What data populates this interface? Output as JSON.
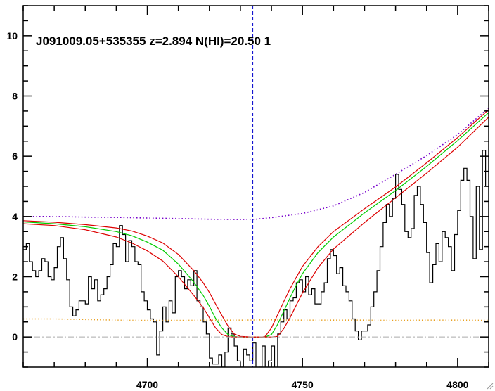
{
  "chart_data": {
    "type": "line",
    "title": "J091009.05+535355 z=2.894 N(HI)=20.50 1",
    "xlabel": "",
    "ylabel": "",
    "xlim": [
      4660,
      4810
    ],
    "ylim": [
      -1,
      11
    ],
    "xticks": [
      4700,
      4750,
      4800
    ],
    "yticks": [
      0,
      2,
      4,
      6,
      8,
      10
    ],
    "grid": false,
    "absorber_center_x": 4734,
    "zero_level_y": 0,
    "colors": {
      "data": "#000000",
      "fit": "#00cc00",
      "fit_bounds": "#dd0000",
      "continuum": "#7700cc",
      "error": "#e8a020",
      "center_line": "#0000cc",
      "zero_line": "#aaaaaa"
    },
    "series": [
      {
        "style": "step",
        "color": "#000000",
        "x": [
          4660,
          4661,
          4662,
          4663,
          4664,
          4665,
          4666,
          4667,
          4668,
          4669,
          4670,
          4671,
          4672,
          4673,
          4674,
          4675,
          4676,
          4677,
          4678,
          4679,
          4680,
          4681,
          4682,
          4683,
          4684,
          4685,
          4686,
          4687,
          4688,
          4689,
          4690,
          4691,
          4692,
          4693,
          4694,
          4695,
          4696,
          4697,
          4698,
          4699,
          4700,
          4701,
          4702,
          4703,
          4704,
          4705,
          4706,
          4707,
          4708,
          4709,
          4710,
          4711,
          4712,
          4713,
          4714,
          4715,
          4716,
          4717,
          4718,
          4719,
          4720,
          4721,
          4722,
          4723,
          4724,
          4725,
          4726,
          4727,
          4728,
          4729,
          4730,
          4731,
          4732,
          4733,
          4734,
          4735,
          4736,
          4737,
          4738,
          4739,
          4740,
          4741,
          4742,
          4743,
          4744,
          4745,
          4746,
          4747,
          4748,
          4749,
          4750,
          4751,
          4752,
          4753,
          4754,
          4755,
          4756,
          4757,
          4758,
          4759,
          4760,
          4761,
          4762,
          4763,
          4764,
          4765,
          4766,
          4767,
          4768,
          4769,
          4770,
          4771,
          4772,
          4773,
          4774,
          4775,
          4776,
          4777,
          4778,
          4779,
          4780,
          4781,
          4782,
          4783,
          4784,
          4785,
          4786,
          4787,
          4788,
          4789,
          4790,
          4791,
          4792,
          4793,
          4794,
          4795,
          4796,
          4797,
          4798,
          4799,
          4800,
          4801,
          4802,
          4803,
          4804,
          4805,
          4806,
          4807,
          4808,
          4809
        ],
        "y": [
          2.9,
          3.1,
          2.5,
          2.2,
          2.0,
          2.2,
          2.6,
          2.5,
          2.0,
          1.9,
          2.3,
          3.0,
          3.3,
          2.6,
          1.9,
          1.0,
          0.7,
          0.9,
          1.2,
          1.2,
          1.1,
          2.0,
          1.6,
          1.9,
          1.2,
          1.4,
          1.6,
          2.0,
          2.4,
          3.1,
          3.0,
          3.7,
          3.4,
          2.5,
          3.2,
          3.0,
          2.5,
          2.4,
          1.5,
          1.2,
          0.9,
          0.6,
          0.5,
          -0.6,
          0.2,
          1.0,
          0.5,
          1.2,
          0.8,
          2.0,
          2.2,
          2.0,
          1.6,
          1.9,
          1.7,
          2.2,
          1.2,
          1.0,
          0.5,
          0.1,
          -0.7,
          -0.9,
          -0.9,
          -0.6,
          -1.0,
          -0.5,
          0.3,
          0.1,
          -0.3,
          -0.8,
          -1.0,
          -0.4,
          -0.6,
          -0.8,
          -0.2,
          -1.1,
          -1.0,
          -0.3,
          -1.1,
          -0.8,
          -0.3,
          -1.2,
          0.1,
          0.5,
          0.9,
          0.6,
          1.2,
          1.3,
          1.8,
          1.9,
          1.5,
          2.0,
          1.4,
          1.6,
          1.1,
          1.1,
          1.5,
          1.8,
          2.6,
          2.9,
          2.7,
          2.1,
          2.3,
          1.7,
          1.5,
          1.2,
          0.6,
          0.2,
          -0.1,
          0.2,
          0.2,
          0.4,
          1.0,
          1.5,
          2.2,
          3.0,
          3.8,
          4.4,
          4.0,
          4.6,
          5.4,
          4.9,
          4.4,
          3.5,
          3.3,
          3.6,
          4.7,
          5.0,
          4.4,
          3.8,
          2.8,
          1.8,
          2.4,
          3.1,
          2.5,
          3.5,
          3.3,
          3.0,
          2.2,
          3.4,
          4.2,
          5.2,
          5.6,
          5.2,
          4.0,
          2.6,
          5.0,
          2.9,
          6.2,
          5.0
        ]
      },
      {
        "style": "solid",
        "color": "#00cc00",
        "x": [
          4660,
          4670,
          4680,
          4690,
          4695,
          4700,
          4705,
          4710,
          4715,
          4718,
          4720,
          4722,
          4724,
          4726,
          4728,
          4730,
          4732,
          4734,
          4736,
          4738,
          4740,
          4742,
          4744,
          4746,
          4748,
          4750,
          4755,
          4760,
          4770,
          4780,
          4790,
          4800,
          4810
        ],
        "y": [
          3.82,
          3.76,
          3.66,
          3.5,
          3.36,
          3.15,
          2.88,
          2.42,
          1.82,
          1.38,
          1.02,
          0.62,
          0.3,
          0.08,
          0.01,
          0.0,
          0.0,
          0.0,
          0.0,
          0.0,
          0.08,
          0.42,
          0.86,
          1.3,
          1.72,
          2.1,
          2.8,
          3.32,
          4.12,
          4.86,
          5.66,
          6.52,
          7.45
        ]
      },
      {
        "style": "solid",
        "color": "#dd0000",
        "x": [
          4660,
          4670,
          4680,
          4690,
          4695,
          4700,
          4705,
          4710,
          4715,
          4718,
          4720,
          4722,
          4724,
          4726,
          4728,
          4730,
          4734,
          4737,
          4738,
          4740,
          4742,
          4744,
          4746,
          4748,
          4750,
          4755,
          4760,
          4770,
          4780,
          4790,
          4800,
          4810
        ],
        "y": [
          3.86,
          3.81,
          3.73,
          3.62,
          3.52,
          3.35,
          3.12,
          2.74,
          2.2,
          1.8,
          1.48,
          1.1,
          0.72,
          0.36,
          0.1,
          0.02,
          0.0,
          0.0,
          0.02,
          0.3,
          0.74,
          1.18,
          1.6,
          1.98,
          2.34,
          3.0,
          3.5,
          4.26,
          4.98,
          5.78,
          6.62,
          7.55
        ]
      },
      {
        "style": "solid",
        "color": "#dd0000",
        "x": [
          4660,
          4670,
          4680,
          4690,
          4695,
          4700,
          4705,
          4710,
          4715,
          4718,
          4720,
          4722,
          4724,
          4726,
          4728,
          4730,
          4734,
          4738,
          4740,
          4742,
          4744,
          4746,
          4748,
          4750,
          4755,
          4760,
          4770,
          4780,
          4790,
          4800,
          4810
        ],
        "y": [
          3.76,
          3.7,
          3.56,
          3.32,
          3.12,
          2.86,
          2.52,
          2.0,
          1.38,
          0.98,
          0.64,
          0.3,
          0.08,
          0.01,
          0.0,
          0.0,
          0.0,
          0.0,
          0.0,
          0.02,
          0.28,
          0.64,
          1.06,
          1.46,
          2.3,
          2.92,
          3.8,
          4.62,
          5.44,
          6.3,
          7.3
        ]
      },
      {
        "style": "dotted",
        "color": "#7700cc",
        "x": [
          4660,
          4670,
          4680,
          4690,
          4700,
          4710,
          4720,
          4730,
          4735,
          4740,
          4750,
          4760,
          4770,
          4780,
          4790,
          4800,
          4810
        ],
        "y": [
          4.0,
          4.0,
          3.98,
          3.97,
          3.95,
          3.93,
          3.91,
          3.9,
          3.91,
          3.96,
          4.1,
          4.35,
          4.8,
          5.4,
          6.02,
          6.72,
          7.6
        ]
      },
      {
        "style": "dotted",
        "color": "#e8a020",
        "x": [
          4660,
          4670,
          4680,
          4690,
          4700,
          4710,
          4720,
          4730,
          4740,
          4750,
          4760,
          4770,
          4780,
          4790,
          4800,
          4810
        ],
        "y": [
          0.6,
          0.6,
          0.58,
          0.56,
          0.55,
          0.55,
          0.56,
          0.56,
          0.57,
          0.56,
          0.56,
          0.56,
          0.55,
          0.56,
          0.56,
          0.55
        ]
      }
    ]
  }
}
